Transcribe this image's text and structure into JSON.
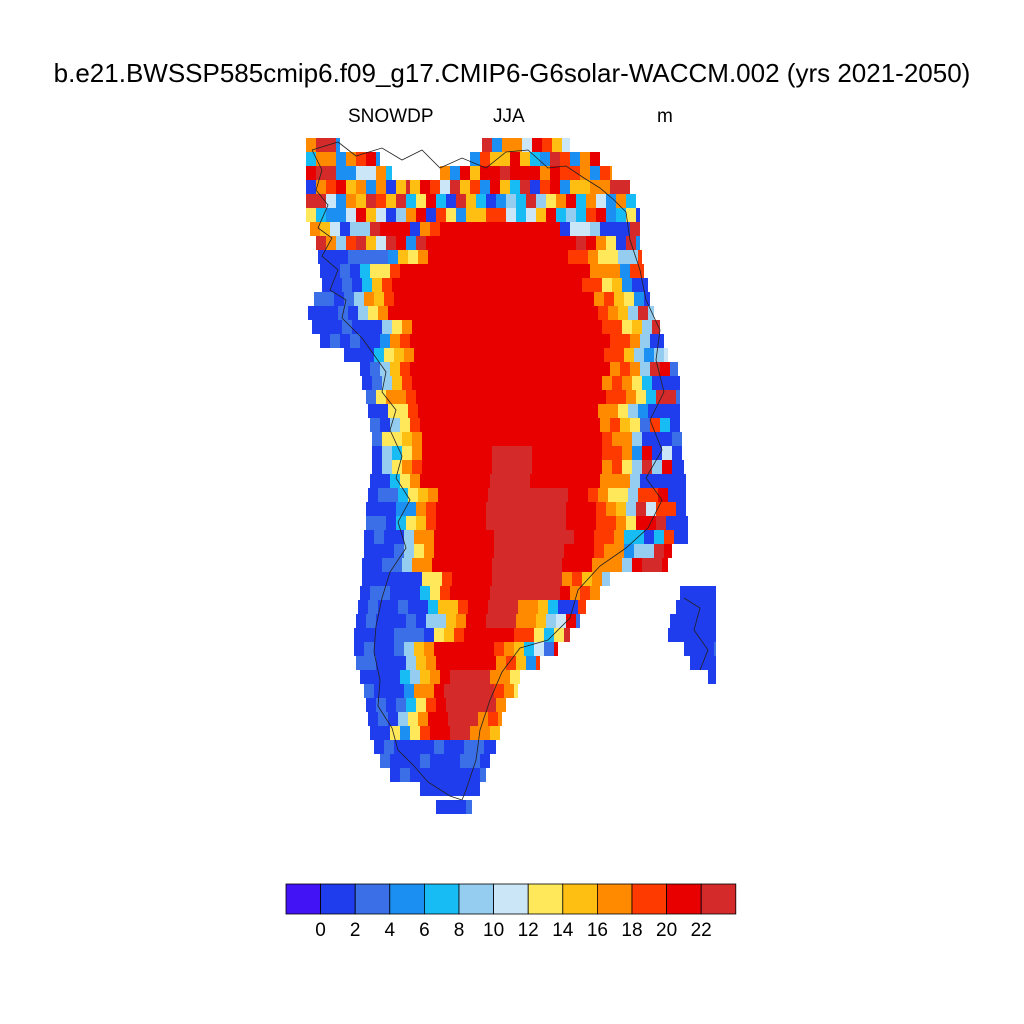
{
  "title": "b.e21.BWSSP585cmip6.f09_g17.CMIP6-G6solar-WACCM.002 (yrs 2021-2050)",
  "left_label": "SNOWDP",
  "center_label": "JJA",
  "right_label": "m",
  "colorbar": {
    "colors": [
      "#4214f5",
      "#1f3ced",
      "#3b6fe8",
      "#1c8ff2",
      "#18bcf5",
      "#94cdef",
      "#cbe6f7",
      "#ffe85a",
      "#ffbf12",
      "#ff8a00",
      "#ff3a00",
      "#e80000",
      "#d42a2a"
    ],
    "labels": [
      "0",
      "2",
      "4",
      "6",
      "8",
      "10",
      "12",
      "14",
      "16",
      "18",
      "20",
      "22"
    ]
  },
  "map_data": {
    "region": "Greenland",
    "variable": "SNOWDP",
    "season": "JJA",
    "units": "m",
    "interior_level": "20-22",
    "core_level": ">22",
    "coast_level": "0-2"
  }
}
